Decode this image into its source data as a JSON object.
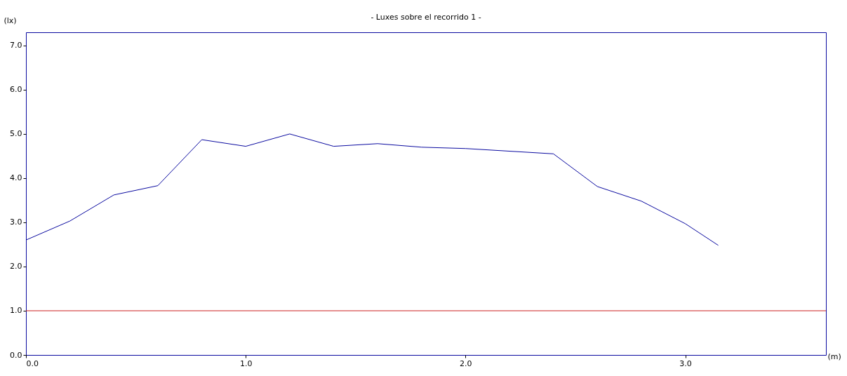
{
  "chart_data": {
    "type": "line",
    "title": "- Luxes sobre el recorrido 1 -",
    "xlabel": "(m)",
    "ylabel": "(lx)",
    "x": [
      0,
      0.2,
      0.4,
      0.6,
      0.8,
      1.0,
      1.2,
      1.4,
      1.6,
      1.8,
      2.0,
      2.4,
      2.6,
      2.8,
      3.0,
      3.15
    ],
    "series": [
      {
        "color": "#0a0aa0",
        "values": [
          2.6,
          3.03,
          3.62,
          3.83,
          4.87,
          4.72,
          5.0,
          4.72,
          4.78,
          4.7,
          4.67,
          4.55,
          3.81,
          3.48,
          2.97,
          2.48
        ]
      }
    ],
    "xlim": [
      0,
      3.64
    ],
    "ylim": [
      0,
      7.3
    ],
    "xticks": [
      {
        "value": 0,
        "label": "0.0"
      },
      {
        "value": 1,
        "label": "1.0"
      },
      {
        "value": 2,
        "label": "2.0"
      },
      {
        "value": 3,
        "label": "3.0"
      }
    ],
    "yticks": [
      {
        "value": 0,
        "label": "0.0"
      },
      {
        "value": 1,
        "label": "1.0"
      },
      {
        "value": 2,
        "label": "2.0"
      },
      {
        "value": 3,
        "label": "3.0"
      },
      {
        "value": 4,
        "label": "4.0"
      },
      {
        "value": 5,
        "label": "5.0"
      },
      {
        "value": 6,
        "label": "6.0"
      },
      {
        "value": 7,
        "label": "7.0"
      }
    ],
    "ref_lines": [
      {
        "axis": "y",
        "value": 1.0,
        "color": "#cc2222"
      }
    ],
    "grid": false,
    "marker": "none",
    "line_style": "solid"
  }
}
